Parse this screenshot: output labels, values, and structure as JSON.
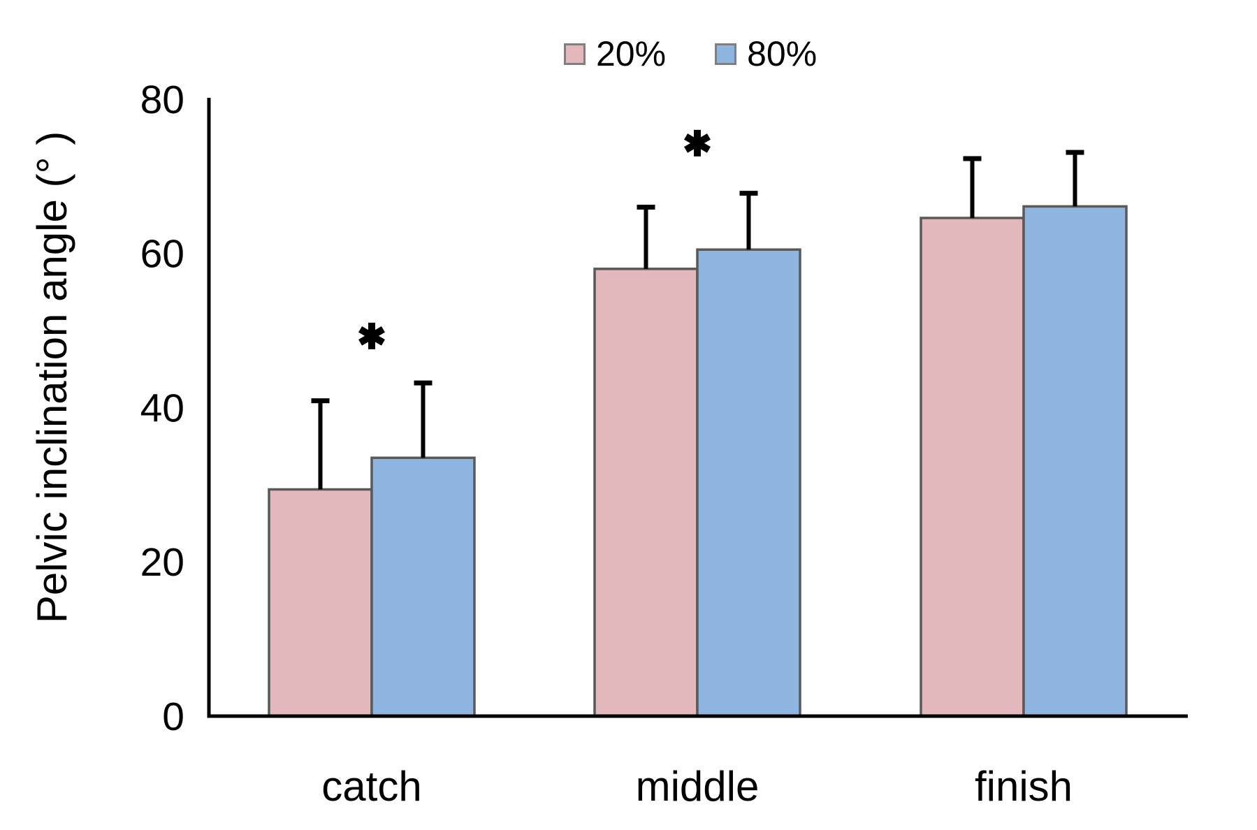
{
  "chart_data": {
    "type": "bar",
    "title": "",
    "ylabel": "Pelvic inclination angle (° )",
    "xlabel": "",
    "categories": [
      "catch",
      "middle",
      "finish"
    ],
    "series": [
      {
        "name": "20%",
        "color": "#e3b8bc",
        "border_color": "#595959",
        "values": [
          29.4,
          58.0,
          64.6
        ],
        "sd_upper": [
          11.5,
          8.0,
          7.7
        ]
      },
      {
        "name": "80%",
        "color": "#8eb4e0",
        "border_color": "#595959",
        "values": [
          33.5,
          60.5,
          66.1
        ],
        "sd_upper": [
          9.7,
          7.3,
          7.0
        ]
      }
    ],
    "ylim": [
      0,
      80
    ],
    "yticks": [
      0,
      20,
      40,
      60,
      80
    ],
    "grid": false,
    "legend_position": "top-center",
    "error_bar_style": "upper-only, black, flat caps",
    "significance_markers": [
      {
        "category_index": 0,
        "symbol": "*",
        "y_center": 49.3
      },
      {
        "category_index": 1,
        "symbol": "*",
        "y_center": 74.3
      }
    ],
    "axis_color": "#000000",
    "text_color": "#000000",
    "background": "#ffffff"
  }
}
